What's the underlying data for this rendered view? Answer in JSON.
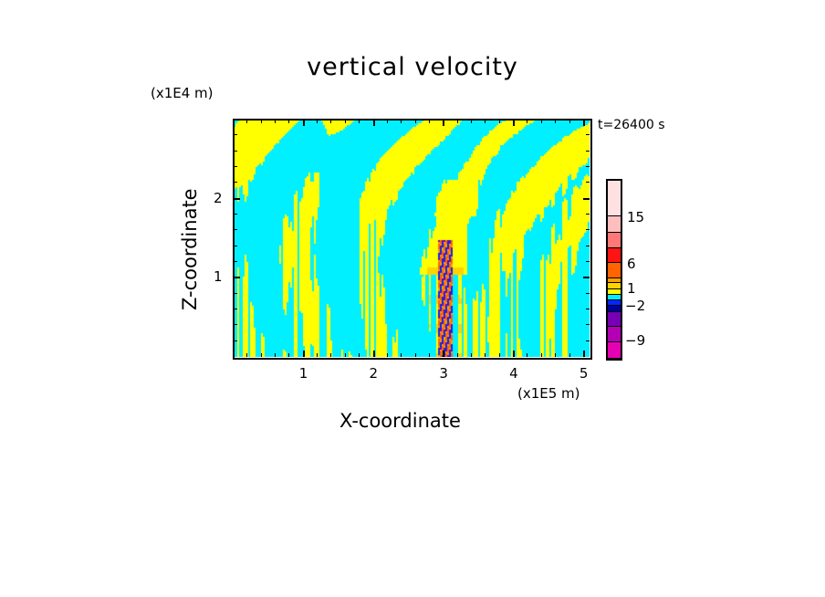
{
  "chart_data": {
    "type": "heatmap",
    "title": "vertical velocity",
    "xlabel": "X-coordinate",
    "ylabel": "Z-coordinate",
    "x_unit": "(x1E5 m)",
    "y_unit": "(x1E4 m)",
    "time_label": "t=26400 s",
    "xlim": [
      0,
      5.08
    ],
    "ylim": [
      0,
      3.0
    ],
    "xticks": [
      {
        "v": 1,
        "label": "1"
      },
      {
        "v": 2,
        "label": "2"
      },
      {
        "v": 3,
        "label": "3"
      },
      {
        "v": 4,
        "label": "4"
      },
      {
        "v": 5,
        "label": "5"
      }
    ],
    "yticks": [
      {
        "v": 1,
        "label": "1"
      },
      {
        "v": 2,
        "label": "2"
      }
    ],
    "colorbar": {
      "colors_top_to_bottom": [
        "#ffe1e1",
        "#ffbebe",
        "#ff7878",
        "#ff1414",
        "#ff6400",
        "#ffa000",
        "#ffd200",
        "#ffff00",
        "#00f0ff",
        "#0028ff",
        "#0000a0",
        "#7800b4",
        "#b400b4",
        "#e600b4"
      ],
      "tick_labels": [
        {
          "v": 15,
          "label": "15"
        },
        {
          "v": 6,
          "label": "6"
        },
        {
          "v": 1,
          "label": "1"
        },
        {
          "v": -2,
          "label": "-2"
        },
        {
          "v": -9,
          "label": "-9"
        }
      ]
    },
    "field_description_colors": {
      "background": "#00f0ff",
      "positive": "#ffff00",
      "jet_center_x": 3.0
    }
  }
}
